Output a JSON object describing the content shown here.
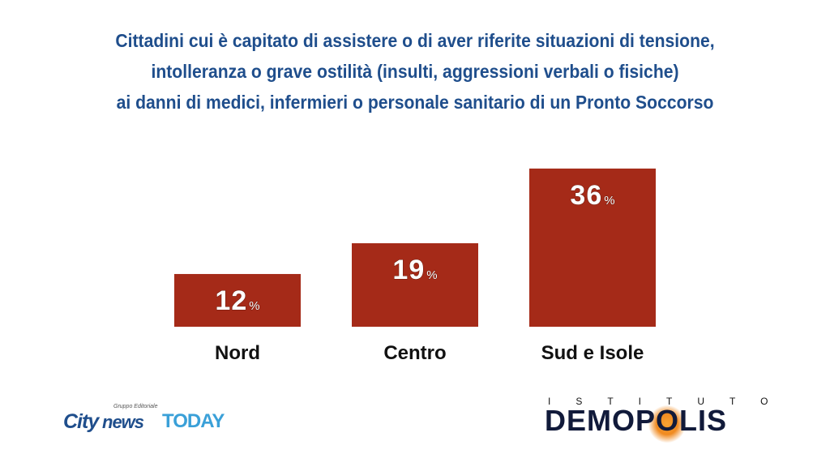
{
  "chart_data": {
    "type": "bar",
    "title_lines": [
      "Cittadini cui è capitato di assistere o di aver riferite situazioni di tensione,",
      "intolleranza o grave ostilità (insulti, aggressioni verbali o fisiche)",
      "ai danni di medici, infermieri o personale sanitario di un Pronto Soccorso"
    ],
    "categories": [
      "Nord",
      "Centro",
      "Sud e Isole"
    ],
    "values": [
      12,
      19,
      36
    ],
    "value_labels": [
      "12",
      "19",
      "36"
    ],
    "unit": "%",
    "bar_color": "#a52a18"
  },
  "logos": {
    "left": {
      "small": "Gruppo Editoriale",
      "part1": "City",
      "part2": "news",
      "part3": "TODAY"
    },
    "right": {
      "top": "ISTITUTO",
      "main": "DEMOPOLIS"
    }
  }
}
